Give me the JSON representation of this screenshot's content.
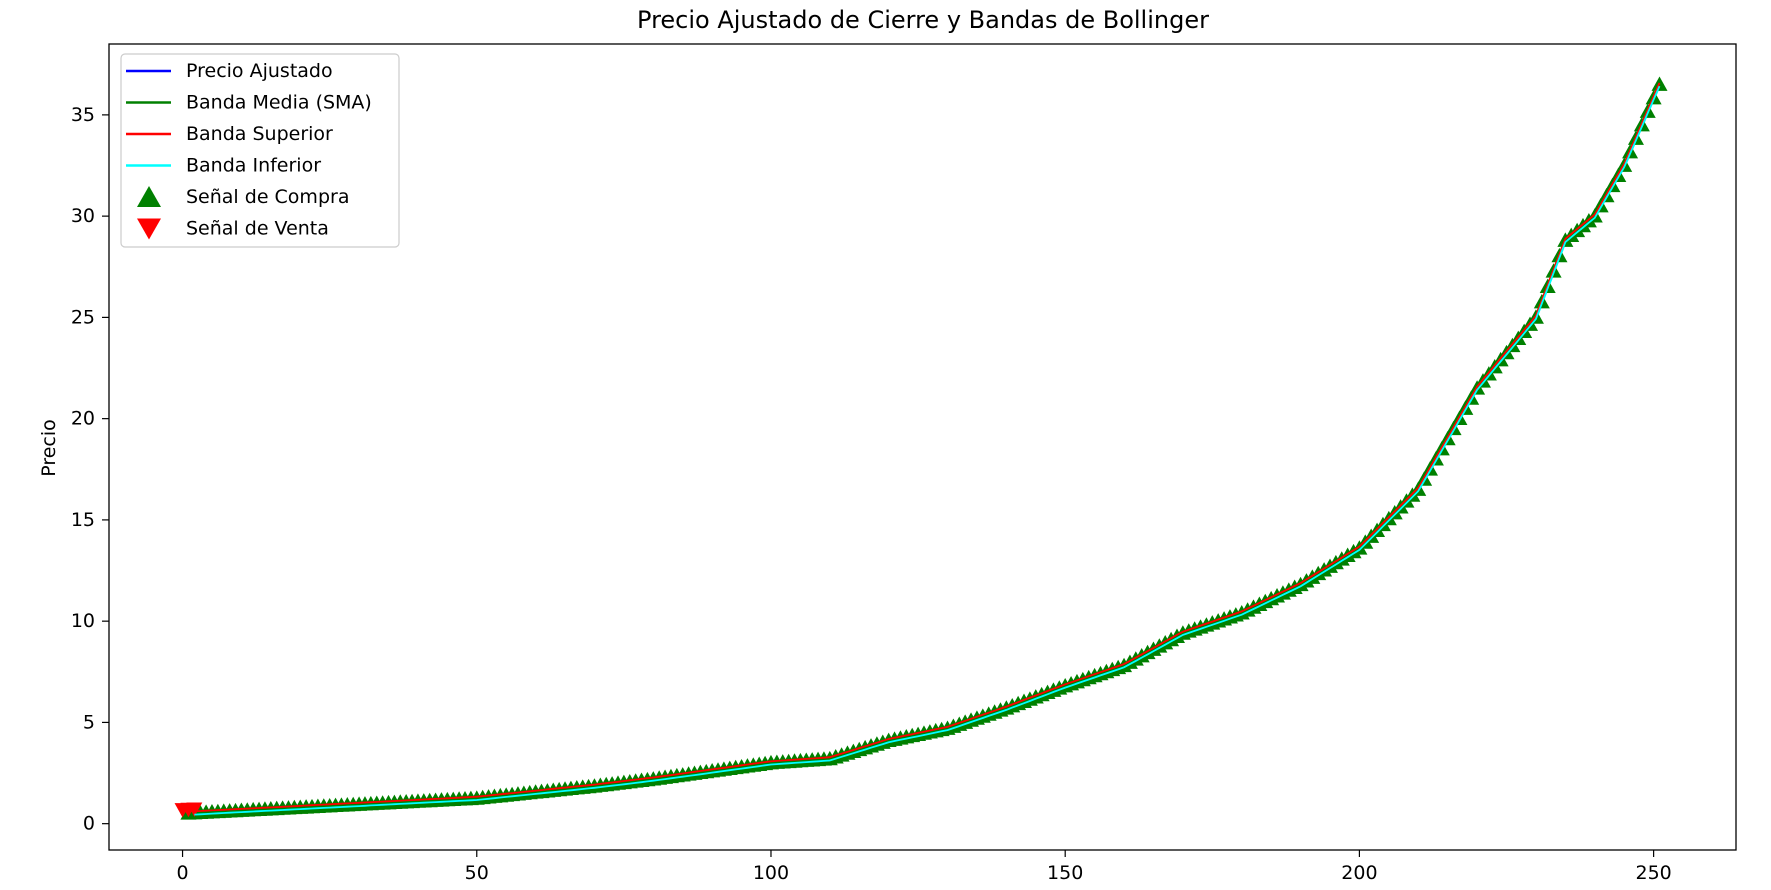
{
  "chart_data": {
    "type": "line",
    "title": "Precio Ajustado de Cierre y Bandas de Bollinger",
    "xlabel": "",
    "ylabel": "Precio",
    "xlim": [
      -12.5,
      264
    ],
    "ylim": [
      -1.3,
      38.5
    ],
    "x_ticks": [
      0,
      50,
      100,
      150,
      200,
      250
    ],
    "y_ticks": [
      0,
      5,
      10,
      15,
      20,
      25,
      30,
      35
    ],
    "grid": false,
    "legend_position": "upper-left",
    "price_anchors": [
      [
        0,
        0.5
      ],
      [
        10,
        0.65
      ],
      [
        20,
        0.8
      ],
      [
        30,
        0.95
      ],
      [
        40,
        1.1
      ],
      [
        50,
        1.25
      ],
      [
        60,
        1.55
      ],
      [
        70,
        1.85
      ],
      [
        80,
        2.2
      ],
      [
        90,
        2.6
      ],
      [
        100,
        3.0
      ],
      [
        110,
        3.2
      ],
      [
        120,
        4.1
      ],
      [
        130,
        4.7
      ],
      [
        140,
        5.7
      ],
      [
        150,
        6.8
      ],
      [
        160,
        7.8
      ],
      [
        170,
        9.4
      ],
      [
        180,
        10.4
      ],
      [
        190,
        11.8
      ],
      [
        200,
        13.6
      ],
      [
        210,
        16.5
      ],
      [
        220,
        21.5
      ],
      [
        230,
        25.0
      ],
      [
        235,
        28.8
      ],
      [
        240,
        30.0
      ],
      [
        245,
        32.5
      ],
      [
        251,
        36.5
      ]
    ],
    "series": [
      {
        "name": "Precio Ajustado",
        "color": "#0000ff",
        "kind": "line",
        "offset": 0
      },
      {
        "name": "Banda Media (SMA)",
        "color": "#008000",
        "kind": "line",
        "offset": 0
      },
      {
        "name": "Banda Superior",
        "color": "#ff0000",
        "kind": "line",
        "offset": 0.08
      },
      {
        "name": "Banda Inferior",
        "color": "#00ffff",
        "kind": "line",
        "offset": -0.08
      },
      {
        "name": "Señal de Compra",
        "color": "#008000",
        "kind": "marker-up",
        "x_start": 1,
        "x_end": 251
      },
      {
        "name": "Señal de Venta",
        "color": "#ff0000",
        "kind": "marker-down",
        "x": [
          0,
          1,
          2
        ]
      }
    ]
  }
}
